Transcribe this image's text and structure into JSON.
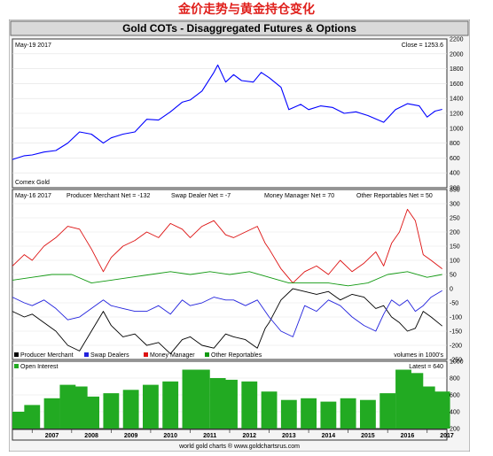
{
  "header_text": "金价走势与黄金持仓变化",
  "chart_title": "Gold COTs - Disaggregated Futures & Options",
  "footer_credit": "world gold charts ® www.goldchartsrus.com",
  "colors": {
    "title_bar": "#d9d9d9",
    "panel_bg": "#ffffff",
    "price": "#0000ff",
    "producer": "#000000",
    "swap": "#2222dd",
    "money_manager": "#dd1111",
    "other": "#119911",
    "open_interest": "#22aa22"
  },
  "chart_data": [
    {
      "type": "line",
      "panel": "price",
      "left_label": "May-19  2017",
      "right_label": "Close = 1253.6",
      "source_label": "Comex Gold",
      "ylim": [
        200,
        2200
      ],
      "yticks": [
        200,
        400,
        600,
        800,
        1000,
        1200,
        1400,
        1600,
        1800,
        2000,
        2200
      ],
      "xlim": [
        2006.5,
        2017.5
      ],
      "xticks": [
        "2007",
        "2008",
        "2009",
        "2010",
        "2011",
        "2012",
        "2013",
        "2014",
        "2015",
        "2016",
        "2017"
      ],
      "series": [
        {
          "key": "price",
          "x": [
            2006.5,
            2006.8,
            2007.0,
            2007.3,
            2007.6,
            2007.9,
            2008.2,
            2008.5,
            2008.8,
            2009.0,
            2009.3,
            2009.6,
            2009.9,
            2010.2,
            2010.5,
            2010.8,
            2011.0,
            2011.3,
            2011.6,
            2011.7,
            2011.9,
            2012.1,
            2012.3,
            2012.6,
            2012.8,
            2013.0,
            2013.3,
            2013.5,
            2013.8,
            2014.0,
            2014.3,
            2014.6,
            2014.9,
            2015.2,
            2015.5,
            2015.9,
            2016.2,
            2016.5,
            2016.8,
            2017.0,
            2017.2,
            2017.38
          ],
          "y": [
            580,
            630,
            640,
            680,
            700,
            800,
            950,
            920,
            800,
            870,
            920,
            950,
            1120,
            1110,
            1220,
            1350,
            1380,
            1500,
            1750,
            1850,
            1620,
            1720,
            1640,
            1620,
            1750,
            1680,
            1550,
            1250,
            1320,
            1250,
            1300,
            1280,
            1200,
            1220,
            1170,
            1080,
            1250,
            1330,
            1300,
            1150,
            1230,
            1253.6
          ]
        }
      ]
    },
    {
      "type": "line",
      "panel": "cot",
      "left_label": "May-16  2017",
      "ylim": [
        -250,
        350
      ],
      "yticks": [
        -250,
        -200,
        -150,
        -100,
        -50,
        0,
        50,
        100,
        150,
        200,
        250,
        300,
        350
      ],
      "units_label": "volumes in 1000's",
      "value_labels": [
        "Producer Merchant Net = -132",
        "Swap Dealer Net = -7",
        "Money Manager Net = 70",
        "Other Reportables Net = 50"
      ],
      "legend": [
        "Producer Merchant",
        "Swap Dealers",
        "Money Manager",
        "Other Reportables"
      ],
      "series": [
        {
          "key": "producer",
          "x": [
            2006.5,
            2006.8,
            2007.0,
            2007.3,
            2007.6,
            2007.9,
            2008.2,
            2008.5,
            2008.8,
            2009.0,
            2009.3,
            2009.6,
            2009.9,
            2010.2,
            2010.5,
            2010.8,
            2011.0,
            2011.3,
            2011.6,
            2011.9,
            2012.1,
            2012.4,
            2012.7,
            2012.9,
            2013.0,
            2013.3,
            2013.6,
            2013.9,
            2014.2,
            2014.5,
            2014.8,
            2015.1,
            2015.4,
            2015.7,
            2015.9,
            2016.1,
            2016.3,
            2016.5,
            2016.7,
            2016.9,
            2017.1,
            2017.38
          ],
          "y": [
            -80,
            -100,
            -90,
            -120,
            -150,
            -200,
            -220,
            -150,
            -80,
            -130,
            -170,
            -160,
            -200,
            -190,
            -230,
            -180,
            -170,
            -200,
            -210,
            -160,
            -170,
            -180,
            -210,
            -140,
            -120,
            -40,
            0,
            -10,
            -20,
            -10,
            -40,
            -20,
            -30,
            -70,
            -60,
            -100,
            -120,
            -150,
            -140,
            -80,
            -100,
            -132
          ]
        },
        {
          "key": "swap",
          "x": [
            2006.5,
            2006.8,
            2007.0,
            2007.3,
            2007.6,
            2007.9,
            2008.2,
            2008.5,
            2008.8,
            2009.0,
            2009.3,
            2009.6,
            2009.9,
            2010.2,
            2010.5,
            2010.8,
            2011.0,
            2011.3,
            2011.6,
            2011.9,
            2012.1,
            2012.4,
            2012.7,
            2012.9,
            2013.0,
            2013.3,
            2013.6,
            2013.9,
            2014.2,
            2014.5,
            2014.8,
            2015.1,
            2015.4,
            2015.7,
            2015.9,
            2016.1,
            2016.3,
            2016.5,
            2016.7,
            2016.9,
            2017.1,
            2017.38
          ],
          "y": [
            -30,
            -50,
            -60,
            -40,
            -70,
            -110,
            -100,
            -70,
            -40,
            -60,
            -70,
            -80,
            -80,
            -60,
            -90,
            -40,
            -60,
            -50,
            -30,
            -40,
            -40,
            -60,
            -40,
            -80,
            -100,
            -150,
            -170,
            -60,
            -80,
            -40,
            -60,
            -100,
            -130,
            -150,
            -90,
            -40,
            -60,
            -40,
            -80,
            -60,
            -30,
            -7
          ]
        },
        {
          "key": "money_manager",
          "x": [
            2006.5,
            2006.8,
            2007.0,
            2007.3,
            2007.6,
            2007.9,
            2008.2,
            2008.5,
            2008.8,
            2009.0,
            2009.3,
            2009.6,
            2009.9,
            2010.2,
            2010.5,
            2010.8,
            2011.0,
            2011.3,
            2011.6,
            2011.9,
            2012.1,
            2012.4,
            2012.7,
            2012.9,
            2013.0,
            2013.3,
            2013.6,
            2013.9,
            2014.2,
            2014.5,
            2014.8,
            2015.1,
            2015.4,
            2015.7,
            2015.9,
            2016.1,
            2016.3,
            2016.5,
            2016.7,
            2016.9,
            2017.1,
            2017.38
          ],
          "y": [
            80,
            120,
            100,
            150,
            180,
            220,
            210,
            140,
            60,
            110,
            150,
            170,
            200,
            180,
            230,
            210,
            180,
            220,
            240,
            190,
            180,
            200,
            220,
            160,
            140,
            70,
            20,
            60,
            80,
            50,
            100,
            60,
            90,
            130,
            80,
            160,
            200,
            280,
            240,
            120,
            100,
            70
          ]
        },
        {
          "key": "other",
          "x": [
            2006.5,
            2007.0,
            2007.5,
            2008.0,
            2008.5,
            2009.0,
            2009.5,
            2010.0,
            2010.5,
            2011.0,
            2011.5,
            2012.0,
            2012.5,
            2013.0,
            2013.5,
            2014.0,
            2014.5,
            2015.0,
            2015.5,
            2016.0,
            2016.5,
            2017.0,
            2017.38
          ],
          "y": [
            30,
            40,
            50,
            50,
            20,
            30,
            40,
            50,
            60,
            50,
            60,
            50,
            60,
            40,
            20,
            20,
            20,
            10,
            20,
            50,
            60,
            40,
            50
          ]
        }
      ]
    },
    {
      "type": "bar",
      "panel": "open_interest",
      "legend": [
        "Open Interest"
      ],
      "right_label": "Latest = 640",
      "ylim": [
        200,
        1000
      ],
      "yticks": [
        200,
        400,
        600,
        800,
        1000
      ],
      "series": [
        {
          "key": "open_interest",
          "x": [
            2006.5,
            2007.0,
            2007.5,
            2007.9,
            2008.2,
            2008.5,
            2009.0,
            2009.5,
            2010.0,
            2010.5,
            2011.0,
            2011.3,
            2011.7,
            2012.0,
            2012.5,
            2013.0,
            2013.5,
            2014.0,
            2014.5,
            2015.0,
            2015.5,
            2016.0,
            2016.4,
            2016.7,
            2017.0,
            2017.38
          ],
          "y": [
            400,
            480,
            560,
            720,
            700,
            580,
            620,
            660,
            720,
            760,
            900,
            900,
            800,
            780,
            760,
            640,
            540,
            560,
            520,
            560,
            540,
            620,
            900,
            860,
            700,
            640
          ]
        }
      ]
    }
  ]
}
